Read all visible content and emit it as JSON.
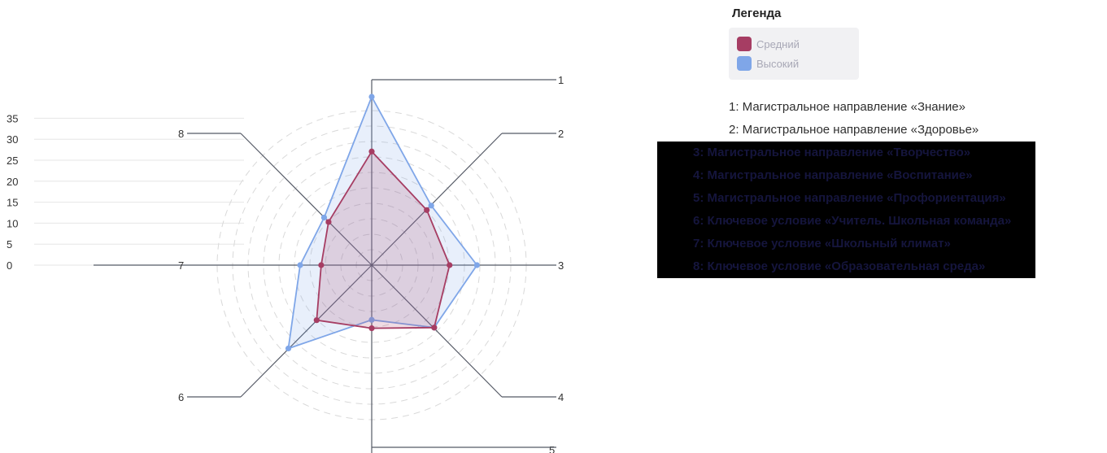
{
  "chart_data": {
    "type": "radar",
    "axes": [
      "1",
      "2",
      "3",
      "4",
      "5",
      "6",
      "7",
      "8"
    ],
    "yticks": [
      "0",
      "5",
      "10",
      "15",
      "20",
      "25",
      "30",
      "35"
    ],
    "series": [
      {
        "name": "Средний",
        "color": "#a63d63",
        "values": [
          27,
          18.5,
          18.5,
          21,
          15,
          18.5,
          12,
          14.5
        ]
      },
      {
        "name": "Высокий",
        "color": "#7fa6e8",
        "values": [
          40,
          20,
          25,
          21,
          13,
          28,
          17,
          16
        ]
      }
    ],
    "max": 40,
    "legend": {
      "title": "Легенда",
      "axis_labels": [
        "1: Магистральное направление «Знание»",
        "2: Магистральное направление «Здоровье»",
        "3: Магистральное направление «Творчество»",
        "4: Магистральное направление «Воспитание»",
        "5: Магистральное направление «Профориентация»",
        "6: Ключевое условие «Учитель. Школьная команда»",
        "7: Ключевое условие «Школьный климат»",
        "8: Ключевое условие «Образовательная среда»"
      ]
    }
  }
}
